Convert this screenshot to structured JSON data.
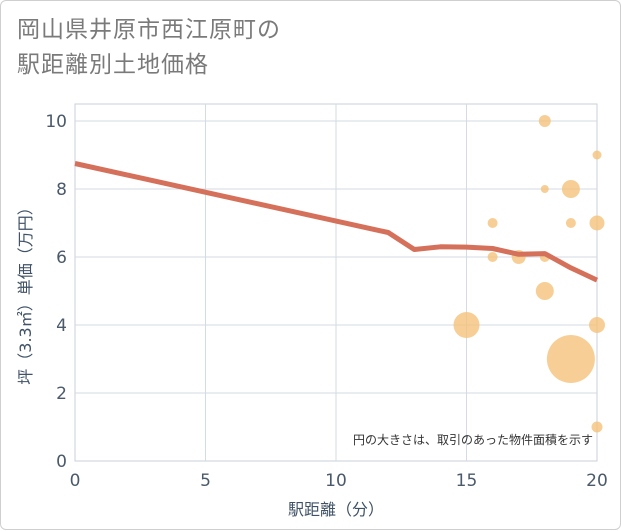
{
  "title_line1": "岡山県井原市西江原町の",
  "title_line2": "駅距離別土地価格",
  "chart_data": {
    "type": "scatter",
    "title": "岡山県井原市西江原町の駅距離別土地価格",
    "xlabel": "駅距離（分）",
    "ylabel": "坪（3.3㎡）単価（万円）",
    "xlim": [
      0,
      20
    ],
    "ylim": [
      0,
      10.5
    ],
    "xticks": [
      0,
      5,
      10,
      15,
      20
    ],
    "yticks": [
      0,
      2,
      4,
      6,
      8,
      10
    ],
    "grid": true,
    "note": "円の大きさは、取引のあった物件面積を示す",
    "bubble_color": "#f5c278",
    "line_color": "#d5705a",
    "points": [
      {
        "x": 18,
        "y": 10,
        "size": 1.2
      },
      {
        "x": 20,
        "y": 9,
        "size": 0.9
      },
      {
        "x": 18,
        "y": 8,
        "size": 0.8
      },
      {
        "x": 19,
        "y": 8,
        "size": 1.8
      },
      {
        "x": 16,
        "y": 7,
        "size": 1.0
      },
      {
        "x": 19,
        "y": 7,
        "size": 1.0
      },
      {
        "x": 20,
        "y": 7,
        "size": 1.5
      },
      {
        "x": 16,
        "y": 6,
        "size": 1.0
      },
      {
        "x": 17,
        "y": 6,
        "size": 1.4
      },
      {
        "x": 18,
        "y": 6,
        "size": 1.0
      },
      {
        "x": 18,
        "y": 5,
        "size": 1.8
      },
      {
        "x": 15,
        "y": 4,
        "size": 2.6
      },
      {
        "x": 20,
        "y": 4,
        "size": 1.6
      },
      {
        "x": 19,
        "y": 3,
        "size": 4.8
      },
      {
        "x": 20,
        "y": 1,
        "size": 1.1
      }
    ],
    "trend": [
      {
        "x": 0,
        "y": 8.75
      },
      {
        "x": 12,
        "y": 6.72
      },
      {
        "x": 13,
        "y": 6.22
      },
      {
        "x": 14,
        "y": 6.3
      },
      {
        "x": 15,
        "y": 6.29
      },
      {
        "x": 16,
        "y": 6.25
      },
      {
        "x": 17,
        "y": 6.08
      },
      {
        "x": 18,
        "y": 6.1
      },
      {
        "x": 19,
        "y": 5.68
      },
      {
        "x": 20,
        "y": 5.32
      }
    ]
  }
}
